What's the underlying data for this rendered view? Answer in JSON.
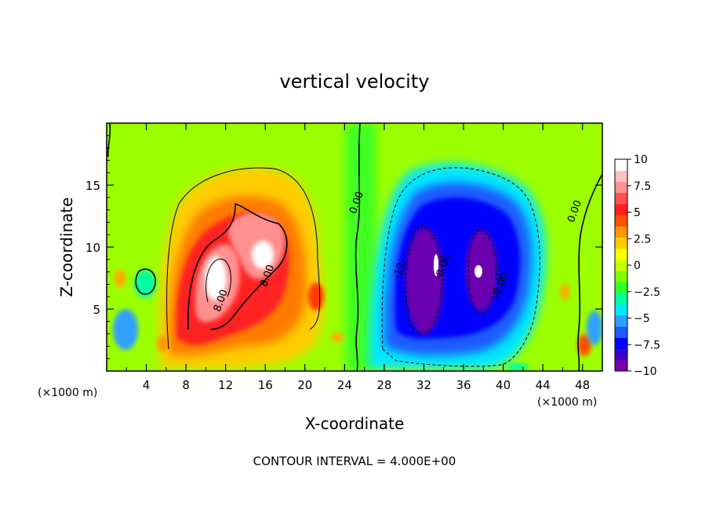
{
  "chart_data": {
    "type": "heatmap",
    "title": "vertical velocity",
    "xlabel": "X-coordinate",
    "ylabel": "Z-coordinate",
    "x_unit_left": "(×1000 m)",
    "x_unit_right": "(×1000 m)",
    "xlim": [
      0,
      50
    ],
    "ylim": [
      0,
      20
    ],
    "x_ticks": [
      4,
      8,
      12,
      16,
      20,
      24,
      28,
      32,
      36,
      40,
      44,
      48
    ],
    "y_ticks": [
      5,
      10,
      15
    ],
    "colorbar": {
      "range": [
        -10,
        10
      ],
      "ticks": [
        10,
        7.5,
        5,
        2.5,
        0,
        -2.5,
        -5,
        -7.5,
        -10
      ],
      "tick_labels": [
        "10",
        "7.5",
        "5",
        "2.5",
        "0",
        "−2.5",
        "−5",
        "−7.5",
        "−10"
      ],
      "colors": [
        "#7a00a8",
        "#3b00c8",
        "#0000ff",
        "#1f5aff",
        "#30a0ff",
        "#00e8ff",
        "#00ffa0",
        "#30ff30",
        "#7cff00",
        "#c8ff00",
        "#ffff00",
        "#ffcc00",
        "#ff9900",
        "#ff5000",
        "#ff2020",
        "#ff5050",
        "#ff9090",
        "#ffc0c0",
        "#ffffff"
      ]
    },
    "contour_labels": [
      {
        "text": "0.00",
        "x": 25.5,
        "y": 13.5
      },
      {
        "text": "0.00",
        "x": 47.5,
        "y": 12.8
      },
      {
        "text": "8.00",
        "x": 11.8,
        "y": 5.6
      },
      {
        "text": "8.00",
        "x": 16.5,
        "y": 7.6
      },
      {
        "text": "-8.00",
        "x": 34.2,
        "y": 8.3
      },
      {
        "text": "-8.00",
        "x": 40.0,
        "y": 6.8
      },
      {
        "text": "-12",
        "x": 29.8,
        "y": 8.0
      }
    ],
    "features": [
      {
        "kind": "updraft",
        "x": 10.5,
        "z": 7.5,
        "peak": 10
      },
      {
        "kind": "updraft",
        "x": 15.5,
        "z": 9.5,
        "peak": 10
      },
      {
        "kind": "downdraft",
        "x": 32.8,
        "z": 8.0,
        "peak": -10
      },
      {
        "kind": "downdraft",
        "x": 38.0,
        "z": 8.0,
        "peak": -10
      }
    ],
    "contour_interval_text": "CONTOUR INTERVAL =  4.000E+00"
  }
}
